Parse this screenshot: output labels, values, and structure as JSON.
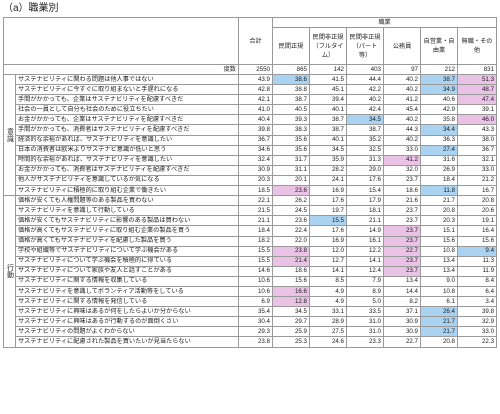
{
  "title": "（a）職業別",
  "header": {
    "group": "職業",
    "total": "合計",
    "columns": [
      "民間正規",
      "民間非正規（フルタイム）",
      "民間非正規（パート等）",
      "公務員",
      "自営業・自由業",
      "無職・その他"
    ],
    "count_label": "度数",
    "counts": [
      "2550",
      "865",
      "142",
      "403",
      "97",
      "212",
      "831"
    ]
  },
  "sections": [
    {
      "label": "意識",
      "rows": [
        {
          "label": "サステナビリティに関わる問題は他人事ではない",
          "values": [
            "43.9",
            "38.6",
            "41.5",
            "44.4",
            "40.2",
            "38.7",
            "51.3"
          ],
          "hl": [
            "",
            "b",
            "",
            "",
            "",
            "b",
            "p"
          ]
        },
        {
          "label": "サステナビリティに今すぐに取り組まないと手遅れになる",
          "values": [
            "42.8",
            "38.8",
            "45.1",
            "42.2",
            "40.2",
            "34.9",
            "48.7"
          ],
          "hl": [
            "",
            "",
            "",
            "",
            "",
            "b",
            "p"
          ]
        },
        {
          "label": "手間がかかっても、企業はサステナビリティを配慮すべきだ",
          "values": [
            "42.1",
            "38.7",
            "39.4",
            "40.2",
            "41.2",
            "40.6",
            "47.4"
          ],
          "hl": [
            "",
            "",
            "",
            "",
            "",
            "",
            "p"
          ]
        },
        {
          "label": "社会の一員として自分も社会のために役立ちたい",
          "values": [
            "41.0",
            "40.5",
            "40.1",
            "42.4",
            "45.4",
            "42.9",
            "39.1"
          ],
          "hl": [
            "",
            "",
            "",
            "",
            "",
            "",
            ""
          ]
        },
        {
          "label": "お金がかかっても、企業はサステナビリティを配慮すべきだ",
          "values": [
            "40.4",
            "39.3",
            "38.7",
            "34.5",
            "40.2",
            "35.8",
            "46.0"
          ],
          "hl": [
            "",
            "",
            "",
            "b",
            "",
            "",
            "p"
          ]
        },
        {
          "label": "手間がかかっても、消費者はサステナビリティを配慮すべきだ",
          "values": [
            "39.8",
            "38.3",
            "38.7",
            "38.7",
            "44.3",
            "34.4",
            "43.3"
          ],
          "hl": [
            "",
            "",
            "",
            "",
            "",
            "b",
            ""
          ]
        },
        {
          "label": "経済的な余裕があれば、サステナビリティを意識したい",
          "values": [
            "36.7",
            "35.6",
            "40.1",
            "35.2",
            "40.2",
            "36.3",
            "38.0"
          ],
          "hl": [
            "",
            "",
            "",
            "",
            "",
            "",
            ""
          ]
        },
        {
          "label": "日本の消費者は欧米よりサステナビ意識が低いと思う",
          "values": [
            "34.6",
            "35.6",
            "34.5",
            "32.5",
            "33.0",
            "27.4",
            "36.7"
          ],
          "hl": [
            "",
            "",
            "",
            "",
            "",
            "b",
            ""
          ]
        },
        {
          "label": "時間的な余裕があれば、サステナビリティを意識したい",
          "values": [
            "32.4",
            "31.7",
            "35.9",
            "31.3",
            "41.2",
            "31.6",
            "32.1"
          ],
          "hl": [
            "",
            "",
            "",
            "",
            "p",
            "",
            ""
          ]
        },
        {
          "label": "お金がかかっても、消費者はサステナビリティを配慮すべきだ",
          "values": [
            "30.9",
            "31.1",
            "28.2",
            "29.0",
            "32.0",
            "26.9",
            "33.0"
          ],
          "hl": [
            "",
            "",
            "",
            "",
            "",
            "",
            ""
          ]
        },
        {
          "label": "他人がサステナビリティを意識しているか気になる",
          "values": [
            "20.3",
            "20.1",
            "24.1",
            "17.6",
            "23.7",
            "18.4",
            "21.2"
          ],
          "hl": [
            "",
            "",
            "",
            "",
            "",
            "",
            ""
          ]
        },
        {
          "label": "サステナビリティに積極的に取り組む企業で働きたい",
          "values": [
            "18.5",
            "23.6",
            "16.9",
            "15.4",
            "18.6",
            "11.8",
            "16.7"
          ],
          "hl": [
            "",
            "p",
            "",
            "",
            "",
            "b",
            ""
          ]
        }
      ]
    },
    {
      "label": "行動",
      "rows": [
        {
          "label": "価格が安くても人権問題等のある製品を買わない",
          "values": [
            "22.1",
            "26.2",
            "17.6",
            "17.9",
            "21.6",
            "21.7",
            "20.8"
          ],
          "hl": [
            "",
            "",
            "",
            "",
            "",
            "",
            ""
          ]
        },
        {
          "label": "サステナビリティを意識して行動している",
          "values": [
            "21.5",
            "24.5",
            "19.7",
            "18.1",
            "23.7",
            "20.8",
            "20.6"
          ],
          "hl": [
            "",
            "",
            "",
            "",
            "",
            "",
            ""
          ]
        },
        {
          "label": "価格が安くてもサステナビリティに影響のある製品は買わない",
          "values": [
            "21.1",
            "23.6",
            "15.5",
            "21.1",
            "23.7",
            "20.3",
            "19.1"
          ],
          "hl": [
            "",
            "",
            "b",
            "",
            "",
            "",
            ""
          ]
        },
        {
          "label": "価格が高くてもサステナビリティに取り組む企業の製品を買う",
          "values": [
            "18.4",
            "22.4",
            "17.6",
            "14.9",
            "23.7",
            "15.1",
            "16.4"
          ],
          "hl": [
            "",
            "",
            "",
            "",
            "p",
            "",
            ""
          ]
        },
        {
          "label": "価格が高くてもサステナビリティを配慮した製品を買う",
          "values": [
            "18.2",
            "22.0",
            "16.9",
            "16.1",
            "23.7",
            "15.6",
            "15.6"
          ],
          "hl": [
            "",
            "",
            "",
            "",
            "p",
            "",
            ""
          ]
        },
        {
          "label": "学校や組織等でサステナビリティについて学ぶ機会がある",
          "values": [
            "15.5",
            "23.8",
            "12.0",
            "12.2",
            "22.7",
            "10.8",
            "9.4"
          ],
          "hl": [
            "",
            "p",
            "",
            "",
            "p",
            "",
            "b"
          ]
        },
        {
          "label": "サステナビリティについて学ぶ機会を積極的に得ている",
          "values": [
            "15.5",
            "21.4",
            "12.7",
            "14.1",
            "23.7",
            "13.4",
            "11.3"
          ],
          "hl": [
            "",
            "p",
            "",
            "",
            "p",
            "",
            ""
          ]
        },
        {
          "label": "サステナビリティについて家族や友人と話すことがある",
          "values": [
            "14.6",
            "18.6",
            "14.1",
            "12.4",
            "23.7",
            "13.4",
            "11.9"
          ],
          "hl": [
            "",
            "",
            "",
            "",
            "p",
            "",
            ""
          ]
        },
        {
          "label": "サステナビリティに関する情報を収集している",
          "values": [
            "10.6",
            "15.6",
            "8.5",
            "7.9",
            "13.4",
            "9.0",
            "8.4"
          ],
          "hl": [
            "",
            "",
            "",
            "",
            "",
            "",
            ""
          ]
        },
        {
          "label": "サステナビリティを意識してボランティア活動等をしている",
          "values": [
            "10.6",
            "16.6",
            "4.9",
            "8.9",
            "14.4",
            "10.8",
            "6.4"
          ],
          "hl": [
            "",
            "p",
            "",
            "",
            "",
            "",
            ""
          ]
        },
        {
          "label": "サステナビリティに関する情報を発信している",
          "values": [
            "6.9",
            "12.8",
            "4.9",
            "5.0",
            "8.2",
            "6.1",
            "3.4"
          ],
          "hl": [
            "",
            "p",
            "",
            "",
            "",
            "",
            ""
          ]
        },
        {
          "label": "サステナビリティに興味はあるが何をしたらよいか分からない",
          "values": [
            "35.4",
            "34.5",
            "33.1",
            "33.5",
            "37.1",
            "26.4",
            "39.8"
          ],
          "hl": [
            "",
            "",
            "",
            "",
            "",
            "b",
            ""
          ]
        },
        {
          "label": "サステナビリティに興味はあるが行動するのが面倒くさい",
          "values": [
            "30.4",
            "29.7",
            "28.9",
            "31.0",
            "30.9",
            "21.7",
            "32.9"
          ],
          "hl": [
            "",
            "",
            "",
            "",
            "",
            "b",
            ""
          ]
        },
        {
          "label": "サステナビリティの問題がよくわからない",
          "values": [
            "29.3",
            "25.9",
            "27.5",
            "31.0",
            "30.9",
            "21.7",
            "33.0"
          ],
          "hl": [
            "",
            "",
            "",
            "",
            "",
            "b",
            ""
          ]
        },
        {
          "label": "サステナビリティに配慮された製品を買いたいが見当たらない",
          "values": [
            "23.8",
            "25.3",
            "24.6",
            "23.3",
            "22.7",
            "20.8",
            "22.3"
          ],
          "hl": [
            "",
            "",
            "",
            "",
            "",
            "",
            ""
          ]
        }
      ]
    }
  ]
}
